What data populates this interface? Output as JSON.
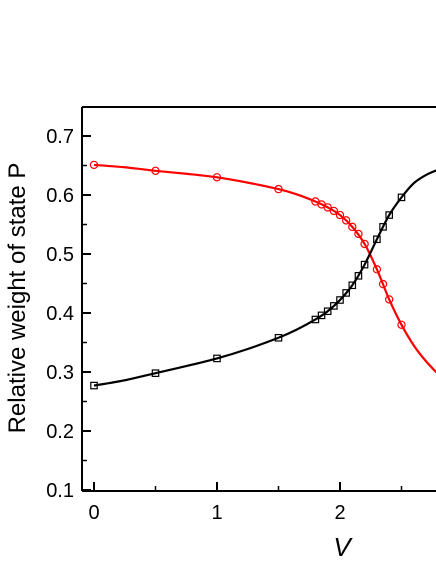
{
  "chart_data": {
    "type": "scatter",
    "xlabel": "V",
    "ylabel": "Relative weight of state P",
    "xlim": [
      -0.1,
      2.8
    ],
    "ylim": [
      0.1,
      0.75
    ],
    "x_ticks": [
      0,
      1,
      2
    ],
    "x_tick_labels": [
      "0",
      "1",
      "2"
    ],
    "y_ticks": [
      0.1,
      0.2,
      0.3,
      0.4,
      0.5,
      0.6,
      0.7
    ],
    "y_tick_labels": [
      "0.1",
      "0.2",
      "0.3",
      "0.4",
      "0.5",
      "0.6",
      "0.7"
    ],
    "grid": false,
    "series": [
      {
        "marker": "circle",
        "color": "#ff0000",
        "x": [
          0,
          0.5,
          1.0,
          1.5,
          1.8,
          1.85,
          1.9,
          1.95,
          2.0,
          2.05,
          2.1,
          2.15,
          2.2,
          2.3,
          2.35,
          2.4,
          2.5
        ],
        "y": [
          0.651,
          0.641,
          0.63,
          0.61,
          0.589,
          0.584,
          0.579,
          0.573,
          0.566,
          0.557,
          0.546,
          0.534,
          0.517,
          0.474,
          0.449,
          0.423,
          0.38
        ],
        "curve_x": [
          0,
          0.25,
          0.5,
          0.75,
          1.0,
          1.25,
          1.5,
          1.65,
          1.8,
          1.9,
          2.0,
          2.1,
          2.2,
          2.3,
          2.4,
          2.5,
          2.6,
          2.7,
          2.8
        ],
        "curve_y": [
          0.651,
          0.647,
          0.641,
          0.636,
          0.63,
          0.621,
          0.61,
          0.601,
          0.589,
          0.579,
          0.566,
          0.546,
          0.517,
          0.474,
          0.423,
          0.38,
          0.345,
          0.318,
          0.296
        ]
      },
      {
        "marker": "square",
        "color": "#000000",
        "x": [
          0,
          0.5,
          1.0,
          1.5,
          1.8,
          1.85,
          1.9,
          1.95,
          2.0,
          2.05,
          2.1,
          2.15,
          2.2,
          2.3,
          2.35,
          2.4,
          2.5
        ],
        "y": [
          0.277,
          0.298,
          0.323,
          0.358,
          0.389,
          0.396,
          0.403,
          0.412,
          0.422,
          0.434,
          0.447,
          0.463,
          0.482,
          0.525,
          0.546,
          0.566,
          0.596
        ],
        "curve_x": [
          0,
          0.25,
          0.5,
          0.75,
          1.0,
          1.25,
          1.5,
          1.65,
          1.8,
          1.9,
          2.0,
          2.1,
          2.2,
          2.3,
          2.4,
          2.5,
          2.6,
          2.7,
          2.8
        ],
        "curve_y": [
          0.277,
          0.286,
          0.298,
          0.31,
          0.323,
          0.339,
          0.358,
          0.372,
          0.389,
          0.403,
          0.422,
          0.447,
          0.482,
          0.525,
          0.566,
          0.596,
          0.62,
          0.634,
          0.643
        ]
      }
    ]
  }
}
